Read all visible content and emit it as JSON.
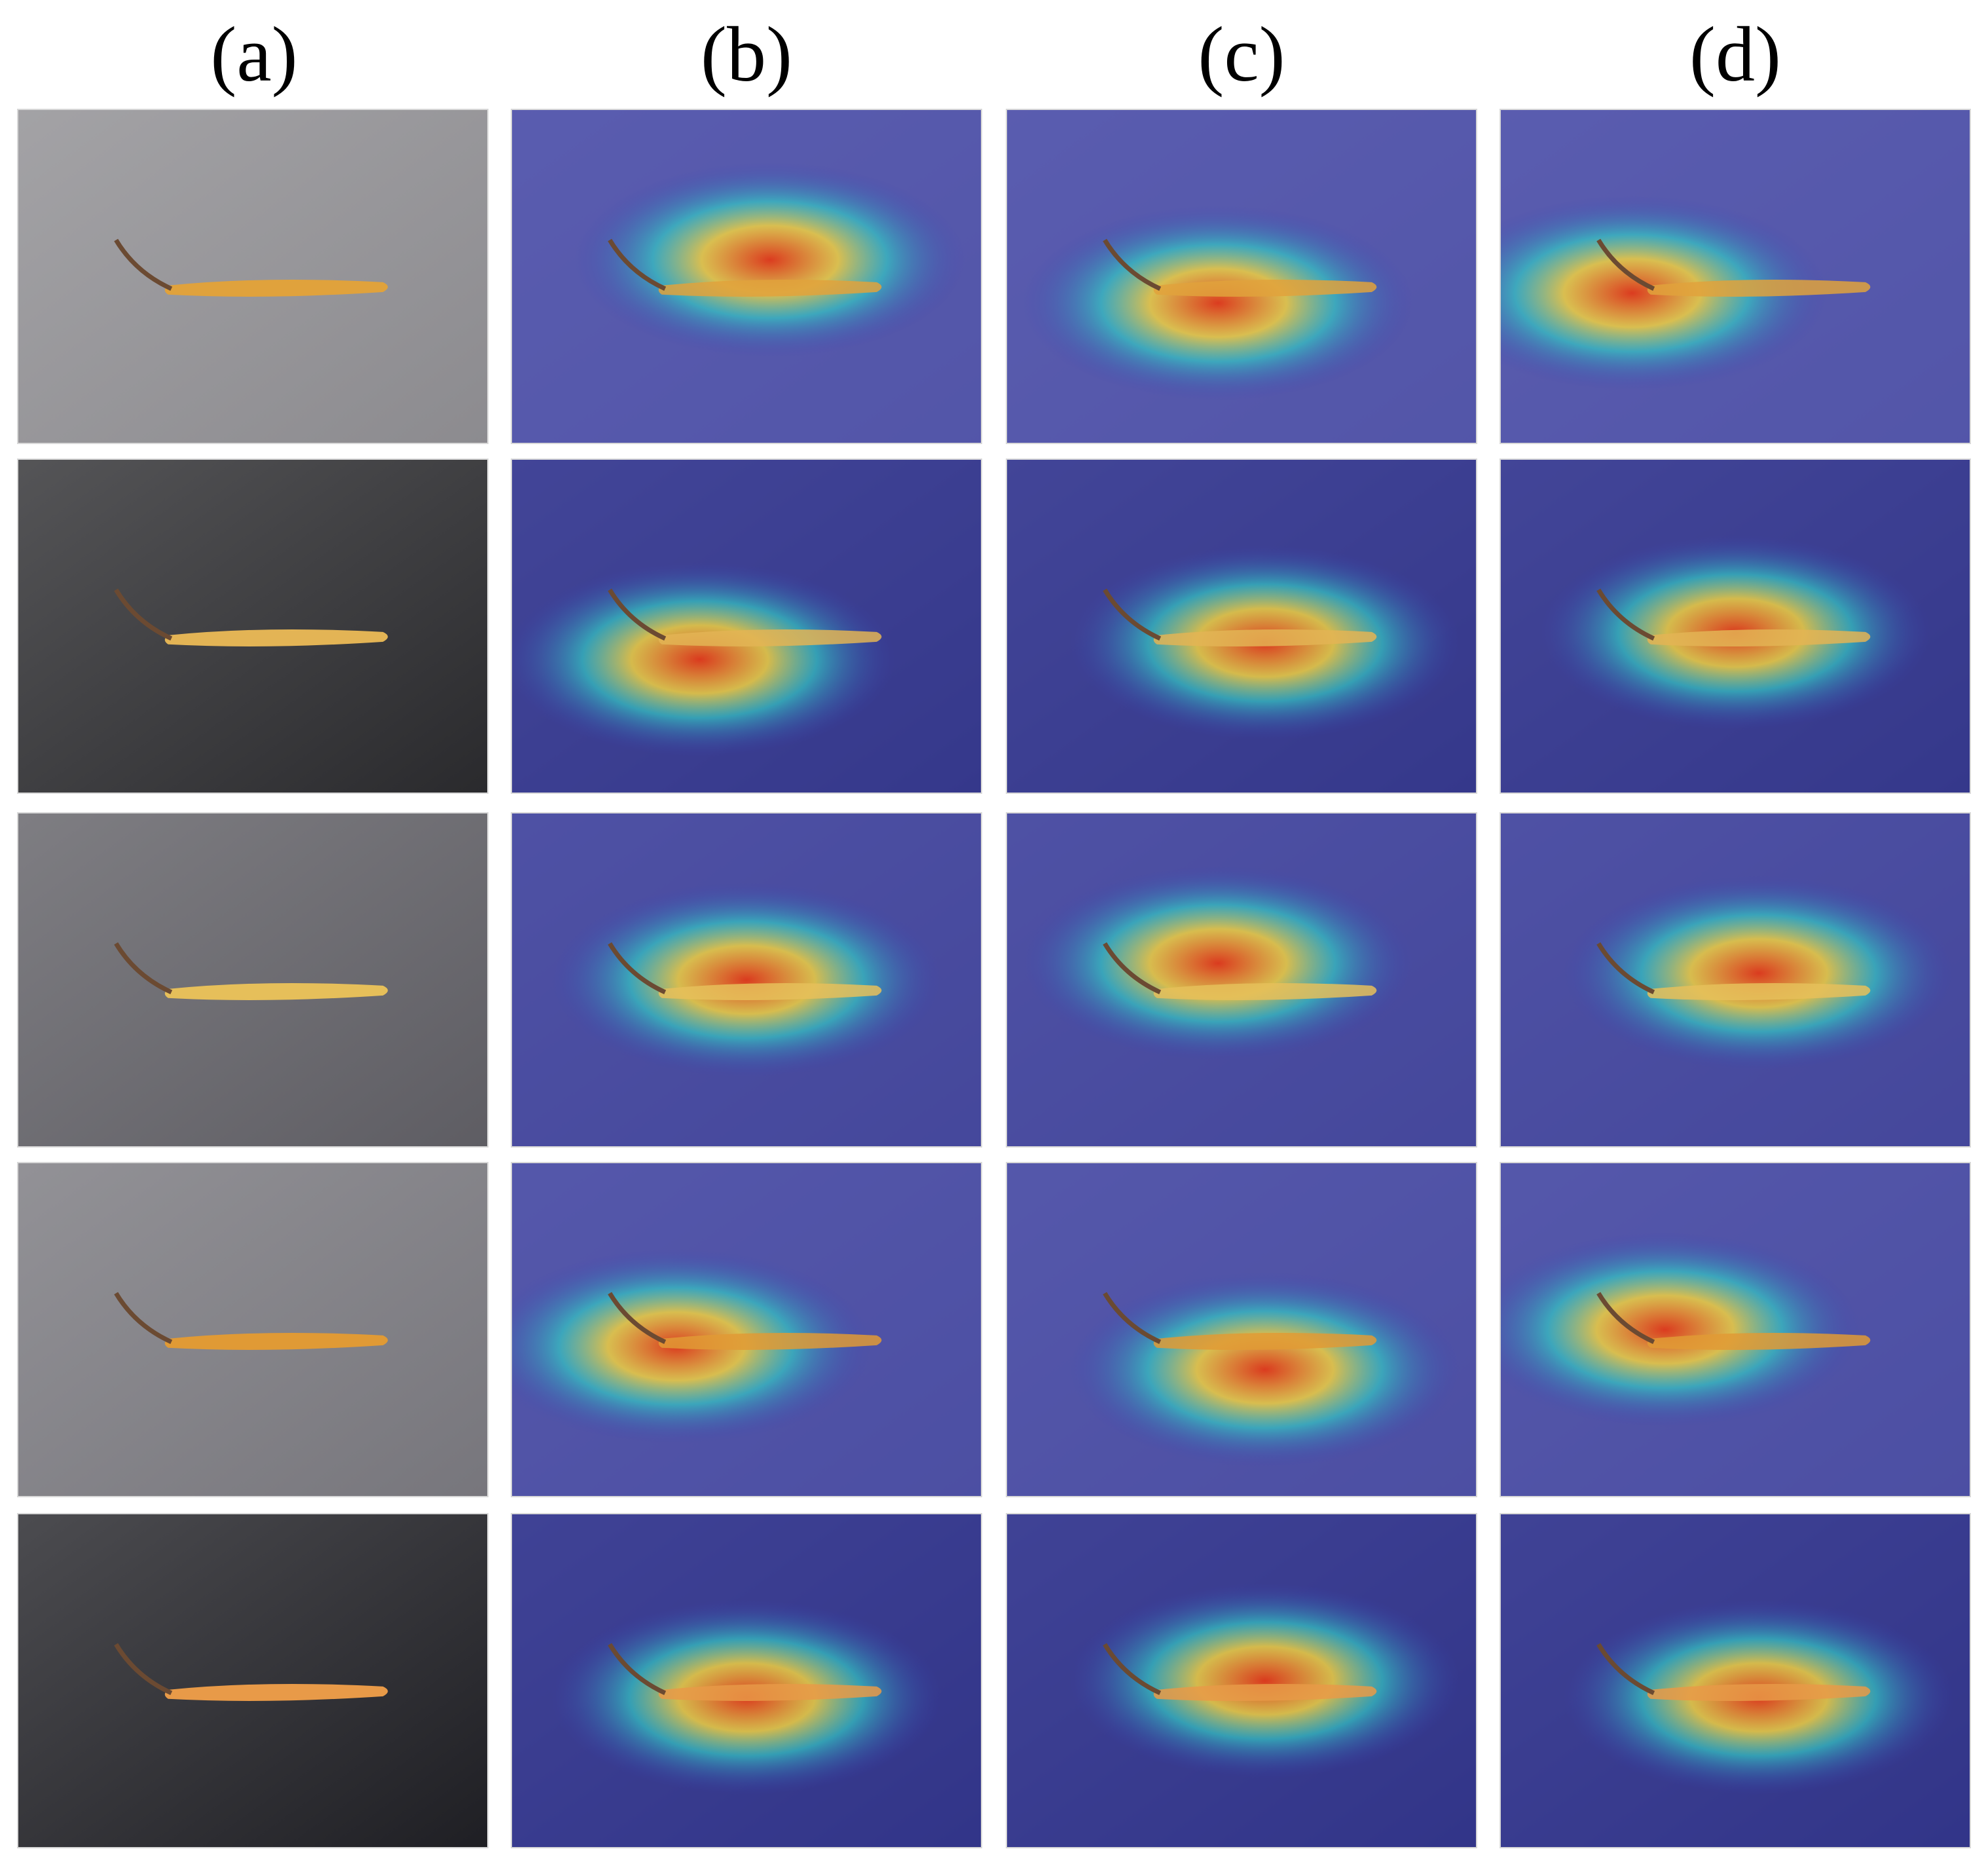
{
  "columns": [
    {
      "label": "(a)",
      "type": "original"
    },
    {
      "label": "(b)",
      "type": "heatmap"
    },
    {
      "label": "(c)",
      "type": "heatmap"
    },
    {
      "label": "(d)",
      "type": "heatmap"
    }
  ],
  "rows": [
    {
      "background": "#8c8b8f",
      "specimen_tone": "#e0a23c",
      "heat": [
        [
          0.55,
          0.45
        ],
        [
          0.45,
          0.58
        ],
        [
          0.28,
          0.55
        ]
      ]
    },
    {
      "background": "#2a2a2d",
      "specimen_tone": "#e3b455",
      "heat": [
        [
          0.4,
          0.6
        ],
        [
          0.55,
          0.55
        ],
        [
          0.5,
          0.52
        ]
      ]
    },
    {
      "background": "#5e5d63",
      "specimen_tone": "#e6bf5a",
      "heat": [
        [
          0.5,
          0.5
        ],
        [
          0.45,
          0.45
        ],
        [
          0.55,
          0.48
        ]
      ]
    },
    {
      "background": "#77767c",
      "specimen_tone": "#e09a35",
      "heat": [
        [
          0.35,
          0.55
        ],
        [
          0.55,
          0.62
        ],
        [
          0.35,
          0.5
        ]
      ]
    },
    {
      "background": "#1f1f24",
      "specimen_tone": "#e89a48",
      "heat": [
        [
          0.5,
          0.55
        ],
        [
          0.55,
          0.5
        ],
        [
          0.55,
          0.55
        ]
      ]
    }
  ],
  "colors": {
    "heat_low": "#3a3fb4",
    "heat_mid": "#33c9c4",
    "heat_high": "#e23a18"
  }
}
